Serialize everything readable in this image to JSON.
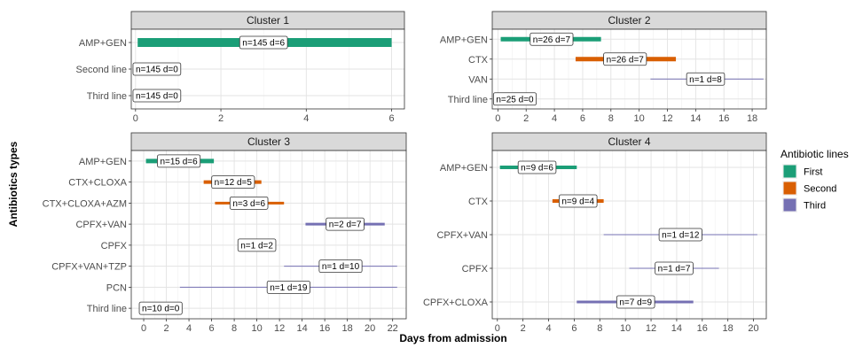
{
  "chart_data": {
    "type": "gantt",
    "xlabel": "Days from admission",
    "ylabel": "Antibiotics types",
    "legend": {
      "title": "Antibiotic lines",
      "position": "right",
      "entries": [
        {
          "name": "First",
          "color": "#1b9e77"
        },
        {
          "name": "Second",
          "color": "#d95f02"
        },
        {
          "name": "Third",
          "color": "#7570b3"
        }
      ]
    },
    "grid": true,
    "panels": [
      {
        "title": "Cluster 1",
        "xlim": [
          -0.1,
          6.3
        ],
        "xticks": [
          0,
          2,
          4,
          6
        ],
        "categories": [
          "AMP+GEN",
          "Second line",
          "Third line"
        ],
        "bars": [
          {
            "category": "AMP+GEN",
            "start": 0.05,
            "end": 6,
            "line": "First",
            "label": "n=145 d=6",
            "label_x": 3,
            "weight": 10
          },
          {
            "category": "Second line",
            "start": null,
            "end": null,
            "line": null,
            "label": "n=145 d=0",
            "label_x": 0.5,
            "weight": 0
          },
          {
            "category": "Third line",
            "start": null,
            "end": null,
            "line": null,
            "label": "n=145 d=0",
            "label_x": 0.5,
            "weight": 0
          }
        ]
      },
      {
        "title": "Cluster 2",
        "xlim": [
          -0.4,
          19
        ],
        "xticks": [
          0,
          2,
          4,
          6,
          8,
          10,
          12,
          14,
          16,
          18
        ],
        "categories": [
          "AMP+GEN",
          "CTX",
          "VAN",
          "Third line"
        ],
        "bars": [
          {
            "category": "AMP+GEN",
            "start": 0.2,
            "end": 7.3,
            "line": "First",
            "label": "n=26 d=7",
            "label_x": 3.8,
            "weight": 5
          },
          {
            "category": "CTX",
            "start": 5.5,
            "end": 12.6,
            "line": "Second",
            "label": "n=26 d=7",
            "label_x": 9,
            "weight": 5
          },
          {
            "category": "VAN",
            "start": 10.8,
            "end": 18.8,
            "line": "Third",
            "label": "n=1 d=8",
            "label_x": 14.7,
            "weight": 1
          },
          {
            "category": "Third line",
            "start": null,
            "end": null,
            "line": null,
            "label": "n=25 d=0",
            "label_x": 1.2,
            "weight": 0
          }
        ]
      },
      {
        "title": "Cluster 3",
        "xlim": [
          -1.1,
          23.2
        ],
        "xticks": [
          0,
          2,
          4,
          6,
          8,
          10,
          12,
          14,
          16,
          18,
          20,
          22
        ],
        "categories": [
          "AMP+GEN",
          "CTX+CLOXA",
          "CTX+CLOXA+AZM",
          "CPFX+VAN",
          "CPFX",
          "CPFX+VAN+TZP",
          "PCN",
          "Third line"
        ],
        "bars": [
          {
            "category": "AMP+GEN",
            "start": 0.2,
            "end": 6.2,
            "line": "First",
            "label": "n=15 d=6",
            "label_x": 3.1,
            "weight": 5
          },
          {
            "category": "CTX+CLOXA",
            "start": 5.3,
            "end": 10.4,
            "line": "Second",
            "label": "n=12 d=5",
            "label_x": 7.9,
            "weight": 4
          },
          {
            "category": "CTX+CLOXA+AZM",
            "start": 6.3,
            "end": 12.4,
            "line": "Second",
            "label": "n=3 d=6",
            "label_x": 9.3,
            "weight": 3
          },
          {
            "category": "CPFX+VAN",
            "start": 14.3,
            "end": 21.3,
            "line": "Third",
            "label": "n=2 d=7",
            "label_x": 17.8,
            "weight": 3
          },
          {
            "category": "CPFX",
            "start": null,
            "end": null,
            "line": "Third",
            "label": "n=1 d=2",
            "label_x": 10,
            "weight": 0
          },
          {
            "category": "CPFX+VAN+TZP",
            "start": 12.4,
            "end": 22.4,
            "line": "Third",
            "label": "n=1 d=10",
            "label_x": 17.4,
            "weight": 1
          },
          {
            "category": "PCN",
            "start": 3.2,
            "end": 22.4,
            "line": "Third",
            "label": "n=1 d=19",
            "label_x": 12.8,
            "weight": 1
          },
          {
            "category": "Third line",
            "start": null,
            "end": null,
            "line": null,
            "label": "n=10 d=0",
            "label_x": 1.5,
            "weight": 0
          }
        ]
      },
      {
        "title": "Cluster 4",
        "xlim": [
          -0.4,
          21
        ],
        "xticks": [
          0,
          2,
          4,
          6,
          8,
          10,
          12,
          14,
          16,
          18,
          20
        ],
        "categories": [
          "AMP+GEN",
          "CTX",
          "CPFX+VAN",
          "CPFX",
          "CPFX+CLOXA"
        ],
        "bars": [
          {
            "category": "AMP+GEN",
            "start": 0.2,
            "end": 6.2,
            "line": "First",
            "label": "n=9 d=6",
            "label_x": 3.1,
            "weight": 4
          },
          {
            "category": "CTX",
            "start": 4.3,
            "end": 8.3,
            "line": "Second",
            "label": "n=9 d=4",
            "label_x": 6.3,
            "weight": 4
          },
          {
            "category": "CPFX+VAN",
            "start": 8.3,
            "end": 20.3,
            "line": "Third",
            "label": "n=1 d=12",
            "label_x": 14.3,
            "weight": 1
          },
          {
            "category": "CPFX",
            "start": 10.3,
            "end": 17.3,
            "line": "Third",
            "label": "n=1 d=7",
            "label_x": 13.8,
            "weight": 1
          },
          {
            "category": "CPFX+CLOXA",
            "start": 6.2,
            "end": 15.3,
            "line": "Third",
            "label": "n=7 d=9",
            "label_x": 10.8,
            "weight": 3
          }
        ]
      }
    ]
  }
}
